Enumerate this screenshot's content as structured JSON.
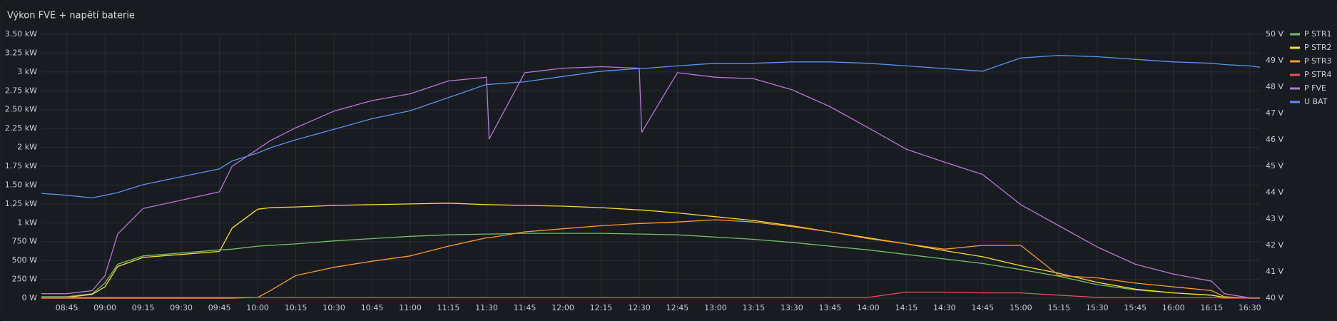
{
  "chart_data": {
    "type": "line",
    "title": "Výkon FVE + napětí baterie",
    "x": [
      "08:35",
      "08:45",
      "08:55",
      "09:00",
      "09:05",
      "09:15",
      "09:30",
      "09:45",
      "09:50",
      "10:00",
      "10:05",
      "10:15",
      "10:30",
      "10:45",
      "11:00",
      "11:15",
      "11:30",
      "11:31",
      "11:45",
      "12:00",
      "12:15",
      "12:30",
      "12:31",
      "12:45",
      "13:00",
      "13:15",
      "13:30",
      "13:45",
      "14:00",
      "14:15",
      "14:30",
      "14:45",
      "15:00",
      "15:15",
      "15:30",
      "15:45",
      "16:00",
      "16:15",
      "16:20",
      "16:30",
      "16:34"
    ],
    "xlim": [
      "08:35",
      "16:34"
    ],
    "xticks": [
      "08:45",
      "09:00",
      "09:15",
      "09:30",
      "09:45",
      "10:00",
      "10:15",
      "10:30",
      "10:45",
      "11:00",
      "11:15",
      "11:30",
      "11:45",
      "12:00",
      "12:15",
      "12:30",
      "12:45",
      "13:00",
      "13:15",
      "13:30",
      "13:45",
      "14:00",
      "14:15",
      "14:30",
      "14:45",
      "15:00",
      "15:15",
      "15:30",
      "15:45",
      "16:00",
      "16:15",
      "16:30"
    ],
    "ylim": [
      0,
      3500
    ],
    "yticks": [
      {
        "value": 0,
        "label": "0 W"
      },
      {
        "value": 250,
        "label": "250 W"
      },
      {
        "value": 500,
        "label": "500 W"
      },
      {
        "value": 750,
        "label": "750 W"
      },
      {
        "value": 1000,
        "label": "1 kW"
      },
      {
        "value": 1250,
        "label": "1.25 kW"
      },
      {
        "value": 1500,
        "label": "1.50 kW"
      },
      {
        "value": 1750,
        "label": "1.75 kW"
      },
      {
        "value": 2000,
        "label": "2 kW"
      },
      {
        "value": 2250,
        "label": "2.25 kW"
      },
      {
        "value": 2500,
        "label": "2.50 kW"
      },
      {
        "value": 2750,
        "label": "2.75 kW"
      },
      {
        "value": 3000,
        "label": "3 kW"
      },
      {
        "value": 3250,
        "label": "3.25 kW"
      },
      {
        "value": 3500,
        "label": "3.50 kW"
      }
    ],
    "y2lim": [
      40,
      50
    ],
    "y2ticks": [
      {
        "value": 40,
        "label": "40 V"
      },
      {
        "value": 41,
        "label": "41 V"
      },
      {
        "value": 42,
        "label": "42 V"
      },
      {
        "value": 43,
        "label": "43 V"
      },
      {
        "value": 44,
        "label": "44 V"
      },
      {
        "value": 45,
        "label": "45 V"
      },
      {
        "value": 46,
        "label": "46 V"
      },
      {
        "value": 47,
        "label": "47 V"
      },
      {
        "value": 48,
        "label": "48 V"
      },
      {
        "value": 49,
        "label": "49 V"
      },
      {
        "value": 50,
        "label": "50 V"
      }
    ],
    "grid": true,
    "legend": "right",
    "series": [
      {
        "name": "P STR1",
        "color": "#73bf69",
        "values": [
          20,
          20,
          60,
          200,
          450,
          560,
          600,
          640,
          650,
          690,
          700,
          720,
          760,
          790,
          820,
          840,
          850,
          850,
          860,
          860,
          860,
          850,
          850,
          840,
          810,
          780,
          740,
          690,
          640,
          580,
          520,
          460,
          380,
          290,
          180,
          110,
          70,
          40,
          10,
          0,
          0
        ]
      },
      {
        "name": "P STR2",
        "color": "#fade2a",
        "values": [
          10,
          10,
          50,
          150,
          420,
          540,
          580,
          620,
          930,
          1180,
          1200,
          1210,
          1230,
          1240,
          1250,
          1260,
          1240,
          1240,
          1230,
          1220,
          1200,
          1170,
          1170,
          1130,
          1080,
          1030,
          960,
          880,
          800,
          720,
          630,
          550,
          430,
          330,
          210,
          120,
          70,
          40,
          10,
          0,
          0
        ]
      },
      {
        "name": "P STR3",
        "color": "#ff9830",
        "values": [
          0,
          0,
          0,
          0,
          0,
          0,
          0,
          0,
          0,
          10,
          100,
          300,
          410,
          490,
          560,
          690,
          800,
          800,
          880,
          920,
          960,
          990,
          990,
          1010,
          1040,
          1010,
          950,
          880,
          790,
          720,
          650,
          700,
          700,
          300,
          270,
          200,
          150,
          100,
          20,
          0,
          0
        ]
      },
      {
        "name": "P STR4",
        "color": "#f2495c",
        "values": [
          10,
          10,
          10,
          10,
          10,
          10,
          10,
          10,
          10,
          10,
          10,
          10,
          10,
          10,
          10,
          10,
          10,
          10,
          10,
          10,
          10,
          10,
          10,
          10,
          10,
          10,
          10,
          10,
          10,
          80,
          80,
          70,
          70,
          40,
          10,
          10,
          10,
          10,
          0,
          0,
          0
        ]
      },
      {
        "name": "P FVE",
        "color": "#b877d9",
        "values": [
          60,
          60,
          100,
          300,
          850,
          1190,
          1300,
          1410,
          1750,
          1975,
          2090,
          2260,
          2480,
          2620,
          2710,
          2880,
          2930,
          2110,
          2990,
          3050,
          3070,
          3050,
          2200,
          2990,
          2930,
          2910,
          2765,
          2540,
          2260,
          1975,
          1805,
          1640,
          1240,
          960,
          680,
          450,
          320,
          225,
          60,
          5,
          5
        ]
      },
      {
        "name": "U BAT",
        "color": "#5794f2",
        "axis": "y2",
        "values": [
          43.97,
          43.9,
          43.8,
          43.9,
          44.0,
          44.3,
          44.6,
          44.9,
          45.2,
          45.5,
          45.7,
          46.0,
          46.4,
          46.8,
          47.1,
          47.6,
          48.1,
          48.1,
          48.2,
          48.4,
          48.6,
          48.7,
          48.7,
          48.8,
          48.9,
          48.9,
          48.95,
          48.95,
          48.9,
          48.8,
          48.7,
          48.6,
          49.1,
          49.2,
          49.15,
          49.05,
          48.95,
          48.9,
          48.85,
          48.8,
          48.75
        ]
      }
    ]
  }
}
